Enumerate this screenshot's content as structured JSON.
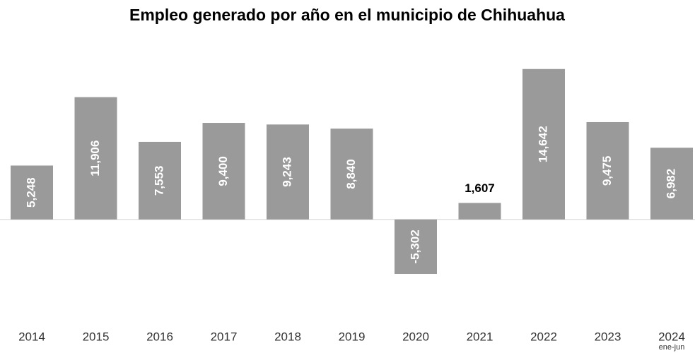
{
  "chart_data": {
    "type": "bar",
    "title": "Empleo generado por año en el municipio de Chihuahua",
    "categories": [
      "2014",
      "2015",
      "2016",
      "2017",
      "2018",
      "2019",
      "2020",
      "2021",
      "2022",
      "2023",
      "2024"
    ],
    "annotation": "ene-jun",
    "values": [
      5248,
      11906,
      7553,
      9400,
      9243,
      8840,
      -5302,
      1607,
      14642,
      9475,
      6982
    ],
    "value_labels": [
      "5,248",
      "11,906",
      "7,553",
      "9,400",
      "9,243",
      "8,840",
      "-5,302",
      "1,607",
      "14,642",
      "9,475",
      "6,982"
    ],
    "color": "#9a9a9a",
    "ylim": [
      -7500,
      16000
    ]
  }
}
